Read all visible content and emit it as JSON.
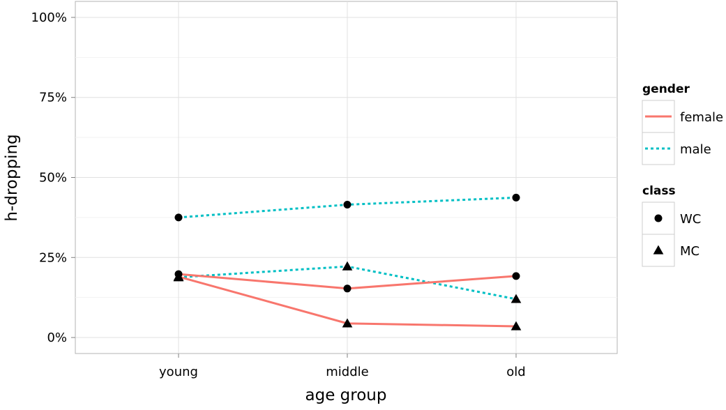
{
  "chart_data": {
    "type": "line",
    "xlabel": "age group",
    "ylabel": "h-dropping",
    "categories": [
      "young",
      "middle",
      "old"
    ],
    "ylim": [
      -0.05,
      1.05
    ],
    "y_ticks": [
      {
        "value": 0,
        "label": "0%"
      },
      {
        "value": 0.25,
        "label": "25%"
      },
      {
        "value": 0.5,
        "label": "50%"
      },
      {
        "value": 0.75,
        "label": "75%"
      },
      {
        "value": 1,
        "label": "100%"
      }
    ],
    "grid": true,
    "series": [
      {
        "gender": "male",
        "class": "WC",
        "values": [
          0.375,
          0.415,
          0.437
        ]
      },
      {
        "gender": "male",
        "class": "MC",
        "values": [
          0.188,
          0.222,
          0.12
        ]
      },
      {
        "gender": "female",
        "class": "WC",
        "values": [
          0.198,
          0.153,
          0.192
        ]
      },
      {
        "gender": "female",
        "class": "MC",
        "values": [
          0.19,
          0.044,
          0.035
        ]
      }
    ],
    "legend": {
      "placement": "right",
      "groups": [
        {
          "title": "gender",
          "kind": "linetype",
          "entries": [
            {
              "label": "female",
              "color": "#F8766D",
              "dash": "solid"
            },
            {
              "label": "male",
              "color": "#00BFC4",
              "dash": "dotted"
            }
          ]
        },
        {
          "title": "class",
          "kind": "shape",
          "entries": [
            {
              "label": "WC",
              "shape": "circle"
            },
            {
              "label": "MC",
              "shape": "triangle"
            }
          ]
        }
      ]
    },
    "colors": {
      "female": "#F8766D",
      "male": "#00BFC4",
      "points": "#000000"
    }
  }
}
